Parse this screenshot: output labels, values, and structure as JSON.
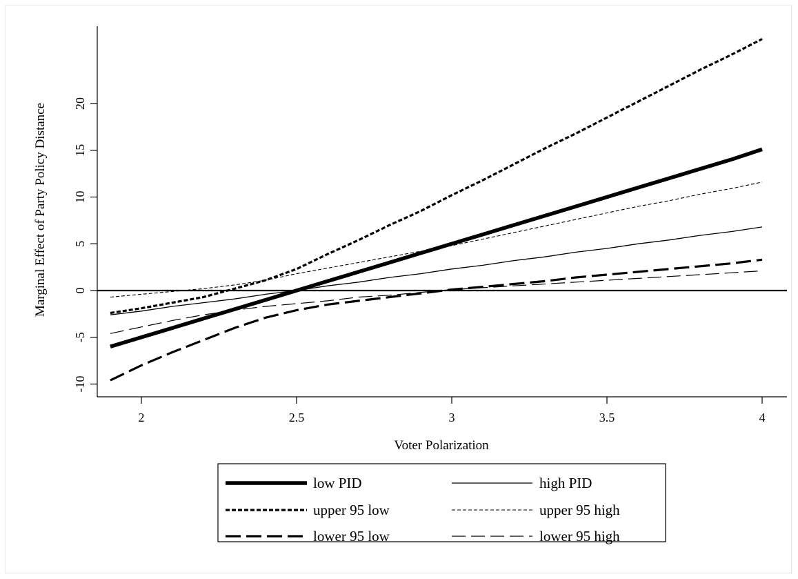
{
  "chart_data": {
    "type": "line",
    "xlabel": "Voter Polarization",
    "ylabel": "Marginal Effect of Party Policy Distance",
    "x_ticks": [
      "2",
      "2.5",
      "3",
      "3.5",
      "4"
    ],
    "y_ticks": [
      "-10",
      "-5",
      "0",
      "5",
      "10",
      "15",
      "20"
    ],
    "xlim": [
      1.87,
      4.07
    ],
    "ylim": [
      -11.5,
      28.5
    ],
    "reference_line_y": 0,
    "grid": false,
    "legend_position": "bottom",
    "series": [
      {
        "name": "low PID",
        "style": "thick-solid",
        "x": [
          1.9,
          2.0,
          2.1,
          2.2,
          2.3,
          2.4,
          2.5,
          2.6,
          2.7,
          2.8,
          2.9,
          3.0,
          3.1,
          3.2,
          3.3,
          3.4,
          3.5,
          3.6,
          3.7,
          3.8,
          3.9,
          4.0
        ],
        "values": [
          -6.0,
          -5.0,
          -4.0,
          -3.0,
          -2.0,
          -1.0,
          0.0,
          1.0,
          2.0,
          3.0,
          4.0,
          5.0,
          6.0,
          7.0,
          8.0,
          9.0,
          10.0,
          11.0,
          12.0,
          13.0,
          14.0,
          15.1
        ]
      },
      {
        "name": "high PID",
        "style": "thin-solid",
        "x": [
          1.9,
          2.0,
          2.1,
          2.2,
          2.3,
          2.4,
          2.5,
          2.6,
          2.7,
          2.8,
          2.9,
          3.0,
          3.1,
          3.2,
          3.3,
          3.4,
          3.5,
          3.6,
          3.7,
          3.8,
          3.9,
          4.0
        ],
        "values": [
          -2.6,
          -2.2,
          -1.7,
          -1.3,
          -0.9,
          -0.4,
          0.0,
          0.5,
          0.9,
          1.4,
          1.8,
          2.3,
          2.7,
          3.2,
          3.6,
          4.1,
          4.5,
          5.0,
          5.4,
          5.9,
          6.3,
          6.8
        ]
      },
      {
        "name": "upper 95 low",
        "style": "thick-short-dash",
        "x": [
          1.9,
          2.0,
          2.1,
          2.2,
          2.3,
          2.4,
          2.5,
          2.6,
          2.7,
          2.8,
          2.9,
          3.0,
          3.1,
          3.2,
          3.3,
          3.4,
          3.5,
          3.6,
          3.7,
          3.8,
          3.9,
          4.0
        ],
        "values": [
          -2.4,
          -1.9,
          -1.3,
          -0.7,
          0.2,
          1.1,
          2.3,
          3.9,
          5.4,
          7.0,
          8.5,
          10.2,
          11.8,
          13.5,
          15.2,
          16.8,
          18.5,
          20.2,
          21.9,
          23.6,
          25.2,
          26.9
        ]
      },
      {
        "name": "upper 95 high",
        "style": "thin-short-dash",
        "x": [
          1.9,
          2.0,
          2.1,
          2.2,
          2.3,
          2.4,
          2.5,
          2.6,
          2.7,
          2.8,
          2.9,
          3.0,
          3.1,
          3.2,
          3.3,
          3.4,
          3.5,
          3.6,
          3.7,
          3.8,
          3.9,
          4.0
        ],
        "values": [
          -0.7,
          -0.4,
          -0.1,
          0.2,
          0.6,
          1.1,
          1.8,
          2.4,
          3.0,
          3.6,
          4.2,
          4.8,
          5.5,
          6.2,
          6.9,
          7.6,
          8.3,
          9.0,
          9.6,
          10.3,
          10.9,
          11.6
        ]
      },
      {
        "name": "lower 95 low",
        "style": "thick-long-dash",
        "x": [
          1.9,
          2.0,
          2.1,
          2.2,
          2.3,
          2.4,
          2.5,
          2.6,
          2.7,
          2.8,
          2.9,
          3.0,
          3.1,
          3.2,
          3.3,
          3.4,
          3.5,
          3.6,
          3.7,
          3.8,
          3.9,
          4.0
        ],
        "values": [
          -9.6,
          -8.0,
          -6.6,
          -5.3,
          -4.0,
          -2.9,
          -2.1,
          -1.5,
          -1.1,
          -0.7,
          -0.3,
          0.1,
          0.4,
          0.7,
          1.0,
          1.4,
          1.7,
          2.0,
          2.3,
          2.6,
          2.9,
          3.3
        ]
      },
      {
        "name": "lower 95 high",
        "style": "thin-long-dash",
        "x": [
          1.9,
          2.0,
          2.1,
          2.2,
          2.3,
          2.4,
          2.5,
          2.6,
          2.7,
          2.8,
          2.9,
          3.0,
          3.1,
          3.2,
          3.3,
          3.4,
          3.5,
          3.6,
          3.7,
          3.8,
          3.9,
          4.0
        ],
        "values": [
          -4.6,
          -3.9,
          -3.2,
          -2.6,
          -2.1,
          -1.7,
          -1.4,
          -1.1,
          -0.7,
          -0.5,
          -0.2,
          0.1,
          0.3,
          0.5,
          0.7,
          0.9,
          1.1,
          1.3,
          1.5,
          1.7,
          1.9,
          2.1
        ]
      }
    ],
    "legend": [
      {
        "label": "low PID",
        "style": "thick-solid"
      },
      {
        "label": "high PID",
        "style": "thin-solid"
      },
      {
        "label": "upper 95 low",
        "style": "thick-short-dash"
      },
      {
        "label": "upper 95 high",
        "style": "thin-short-dash"
      },
      {
        "label": "lower 95 low",
        "style": "thick-long-dash"
      },
      {
        "label": "lower 95 high",
        "style": "thin-long-dash"
      }
    ],
    "colors": {
      "lines": "#000000",
      "background": "#ffffff"
    }
  }
}
